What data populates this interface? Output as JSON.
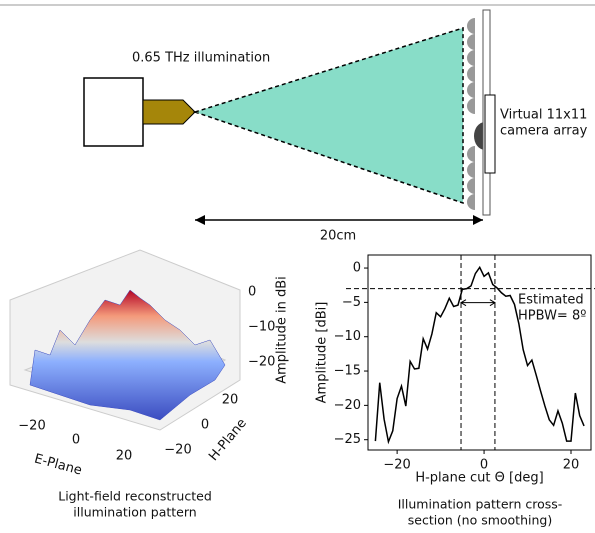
{
  "diagram": {
    "source_label": "0.65 THz illumination",
    "array_label": [
      "Virtual 11x11",
      "camera array"
    ],
    "distance_label": "20cm"
  },
  "chart_data": [
    {
      "type": "surface",
      "caption": [
        "Light-field reconstructed",
        "illumination pattern"
      ],
      "xlabel": "E-Plane",
      "ylabel": "H-Plane",
      "zlabel": "Amplitude in dBi",
      "xticks": [
        {
          "value": -20,
          "label": "−20"
        },
        0,
        20
      ],
      "yticks": [
        20,
        0,
        {
          "value": -20,
          "label": "−20"
        }
      ],
      "zticks": [
        0,
        {
          "value": -10,
          "label": "−10"
        },
        {
          "value": -20,
          "label": "−20"
        }
      ],
      "colormap": "coolwarm"
    },
    {
      "type": "line",
      "caption": [
        "Illumination pattern cross-",
        "section (no smoothing)"
      ],
      "xlabel": "H-plane cut Θ [deg]",
      "ylabel": "Amplitude [dBi]",
      "annotation": [
        "Estimated",
        "HPBW= 8º"
      ],
      "x": [
        -25,
        -24,
        -23,
        -22,
        -21,
        -20,
        -19,
        -18,
        -17,
        -16,
        -15,
        -14,
        -13,
        -12,
        -11,
        -10,
        -9,
        -8,
        -7,
        -6,
        -5,
        -4,
        -3,
        -2,
        -1,
        0,
        1,
        2,
        3,
        4,
        5,
        6,
        7,
        8,
        9,
        10,
        11,
        12,
        13,
        14,
        15,
        16,
        17,
        18,
        19,
        20,
        21,
        22,
        23
      ],
      "series": [
        {
          "color": "#000000",
          "values": [
            -25.2,
            -16.7,
            -22,
            -25.3,
            -23.7,
            -19,
            -17.2,
            -20.1,
            -13.6,
            -14.7,
            -14.6,
            -10.3,
            -11.8,
            -9.6,
            -6.5,
            -7.1,
            -5.9,
            -4.4,
            -5.6,
            -5.4,
            -3.1,
            -3.0,
            -2.6,
            -0.8,
            0.1,
            -1.2,
            -0.7,
            -2.4,
            -2.9,
            -3.6,
            -4.1,
            -4.0,
            -5.3,
            -8.1,
            -11.9,
            -14.2,
            -13.4,
            -15.6,
            -17.9,
            -20.1,
            -22.1,
            -22.9,
            -20.8,
            -22.6,
            -25.2,
            -25.2,
            -18.2,
            -21.5,
            -23.0
          ]
        }
      ],
      "hlines": [
        -3
      ],
      "vlines": [
        -5.3,
        2.5
      ],
      "xlim": [
        -26.7,
        24.6
      ],
      "ylim": [
        -26.5,
        1.9
      ],
      "xticks": [
        {
          "value": -20,
          "label": "−20"
        },
        0,
        20
      ],
      "yticks": [
        0,
        {
          "value": -5,
          "label": "−5"
        },
        {
          "value": -10,
          "label": "−10"
        },
        {
          "value": -15,
          "label": "−15"
        },
        {
          "value": -20,
          "label": "−20"
        },
        {
          "value": -25,
          "label": "−25"
        }
      ]
    }
  ]
}
